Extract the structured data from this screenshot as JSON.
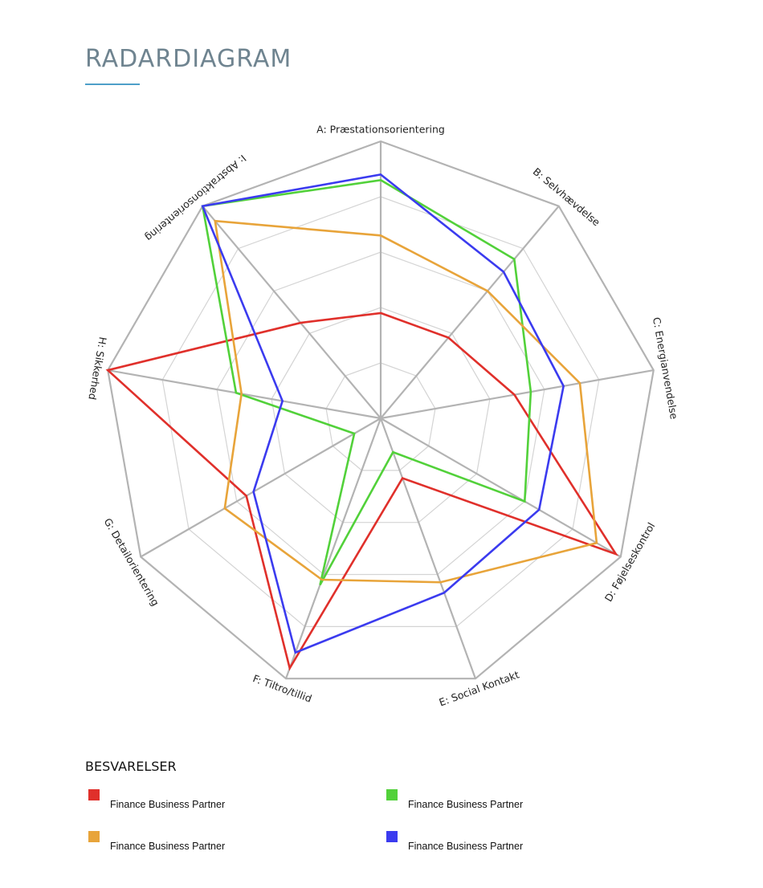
{
  "page": {
    "title": "RADARDIAGRAM"
  },
  "chart_data": {
    "type": "radar",
    "axes": [
      "A: Præstationsorientering",
      "B: Selvhævdelse",
      "C: Energianvendelse",
      "D: Føjelseskontrol",
      "E: Social Kontakt",
      "F: Tiltro/tillid",
      "G: Detailorientering",
      "H: Sikkerhed",
      "I: Abstraktionsorientering"
    ],
    "rlim": [
      0,
      10
    ],
    "rings": 4,
    "series": [
      {
        "name": "Finance Business Partner",
        "color": "#e0302b",
        "values": [
          3.8,
          3.8,
          4.9,
          9.8,
          2.3,
          9.6,
          5.6,
          10.0,
          4.5
        ]
      },
      {
        "name": "Finance Business Partner",
        "color": "#52d13a",
        "values": [
          8.6,
          7.5,
          5.5,
          6.0,
          1.3,
          6.4,
          1.1,
          5.3,
          10.0
        ]
      },
      {
        "name": "Finance Business Partner",
        "color": "#e8a43a",
        "values": [
          6.6,
          6.0,
          7.3,
          9.0,
          6.3,
          6.2,
          6.5,
          5.1,
          9.3
        ]
      },
      {
        "name": "Finance Business Partner",
        "color": "#3b3bef",
        "values": [
          8.8,
          6.9,
          6.7,
          6.6,
          6.7,
          9.0,
          5.3,
          3.6,
          10.0
        ]
      }
    ],
    "legend": {
      "title": "BESVARELSER",
      "placement": "bottom"
    }
  }
}
